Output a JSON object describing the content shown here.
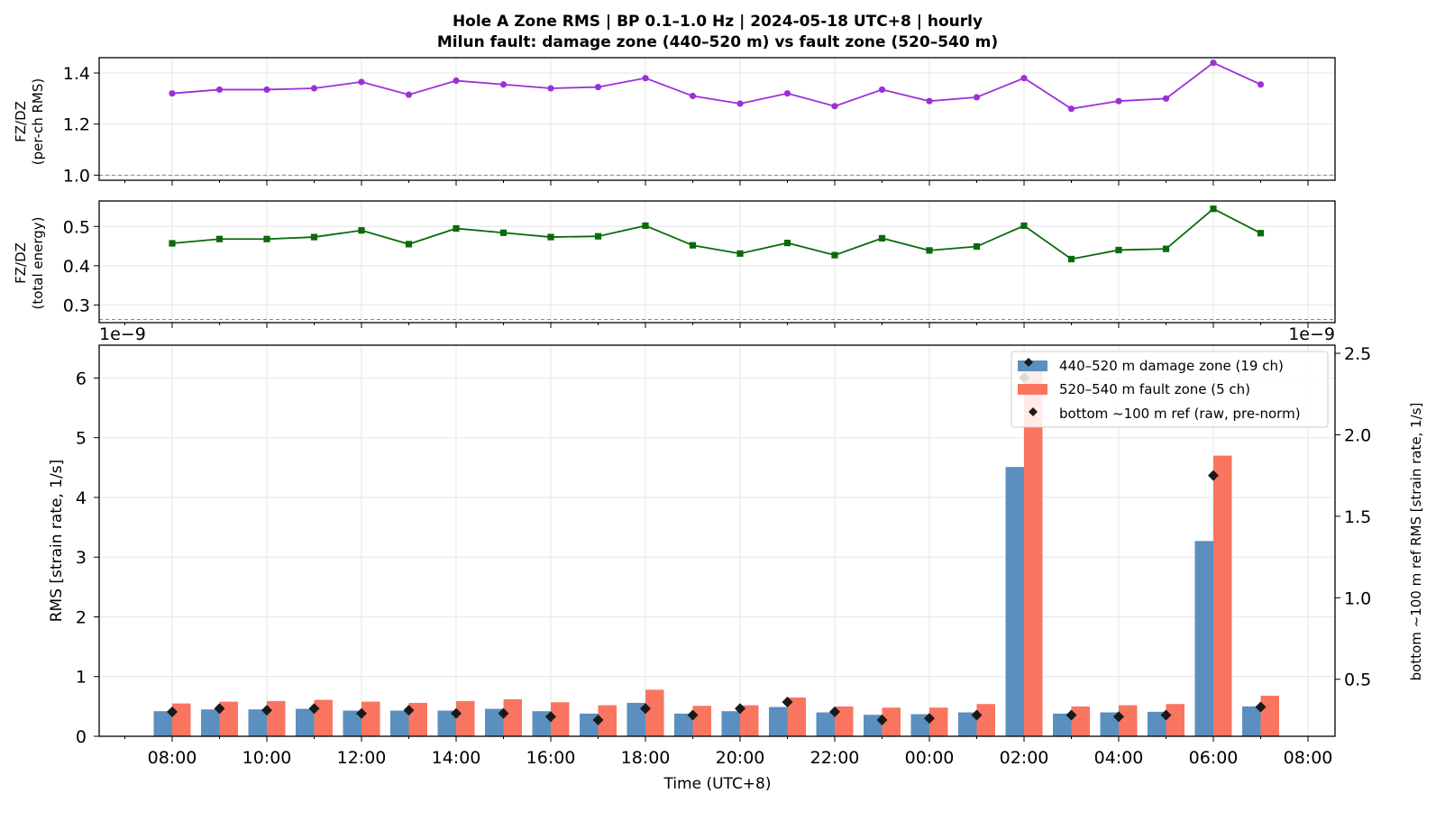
{
  "figure": {
    "title_line1": "Hole A Zone RMS  |  BP 0.1–1.0 Hz  |  2024-05-18 UTC+8  |  hourly",
    "title_line2": "Milun fault: damage zone (440–520 m) vs fault zone (520–540 m)",
    "x_label": "Time (UTC+8)",
    "x_ticks": [
      "08:00",
      "10:00",
      "12:00",
      "14:00",
      "16:00",
      "18:00",
      "20:00",
      "22:00",
      "00:00",
      "02:00",
      "04:00",
      "06:00",
      "08:00"
    ]
  },
  "colors": {
    "ratio_rms": "#9b30d9",
    "ratio_energy": "#0b6a0b",
    "damage_zone": "#5b8fbf",
    "fault_zone": "#fa7560",
    "reference": "#1a1a1a",
    "dashed_line": "#888888"
  },
  "chart_data": [
    {
      "type": "line",
      "ylabel_line1": "FZ/DZ",
      "ylabel_line2": "(per-ch RMS)",
      "ylim": [
        0.98,
        1.46
      ],
      "yticks": [
        "1.0",
        "1.2",
        "1.4"
      ],
      "yticks_values": [
        1.0,
        1.2,
        1.4
      ],
      "hline": 1.0,
      "x": [
        "08:00",
        "09:00",
        "10:00",
        "11:00",
        "12:00",
        "13:00",
        "14:00",
        "15:00",
        "16:00",
        "17:00",
        "18:00",
        "19:00",
        "20:00",
        "21:00",
        "22:00",
        "23:00",
        "00:00",
        "01:00",
        "02:00",
        "03:00",
        "04:00",
        "05:00",
        "06:00",
        "07:00"
      ],
      "values": [
        1.32,
        1.335,
        1.335,
        1.34,
        1.365,
        1.315,
        1.37,
        1.355,
        1.34,
        1.345,
        1.38,
        1.31,
        1.28,
        1.32,
        1.27,
        1.335,
        1.29,
        1.305,
        1.38,
        1.26,
        1.29,
        1.3,
        1.44,
        1.355
      ]
    },
    {
      "type": "line",
      "ylabel_line1": "FZ/DZ",
      "ylabel_line2": "(total energy)",
      "ylim": [
        0.255,
        0.565
      ],
      "yticks": [
        "0.3",
        "0.4",
        "0.5"
      ],
      "yticks_values": [
        0.3,
        0.4,
        0.5
      ],
      "hline": 0.263,
      "x": [
        "08:00",
        "09:00",
        "10:00",
        "11:00",
        "12:00",
        "13:00",
        "14:00",
        "15:00",
        "16:00",
        "17:00",
        "18:00",
        "19:00",
        "20:00",
        "21:00",
        "22:00",
        "23:00",
        "00:00",
        "01:00",
        "02:00",
        "03:00",
        "04:00",
        "05:00",
        "06:00",
        "07:00"
      ],
      "values": [
        0.457,
        0.468,
        0.468,
        0.473,
        0.49,
        0.455,
        0.495,
        0.484,
        0.473,
        0.475,
        0.502,
        0.452,
        0.431,
        0.458,
        0.427,
        0.47,
        0.439,
        0.449,
        0.502,
        0.417,
        0.44,
        0.443,
        0.545,
        0.483
      ]
    },
    {
      "type": "bar",
      "ylabel": "RMS  [strain rate, 1/s]",
      "ylabel_right": "bottom ~100 m ref RMS  [strain rate, 1/s]",
      "offset_left": "1e−9",
      "offset_right": "1e−9",
      "ylim": [
        0,
        6.55
      ],
      "yticks": [
        "0",
        "1",
        "2",
        "3",
        "4",
        "5",
        "6"
      ],
      "yticks_values": [
        0,
        1,
        2,
        3,
        4,
        5,
        6
      ],
      "ylim_right": [
        0.15,
        2.55
      ],
      "yticks_right": [
        "0.5",
        "1.0",
        "1.5",
        "2.0",
        "2.5"
      ],
      "yticks_right_values": [
        0.5,
        1.0,
        1.5,
        2.0,
        2.5
      ],
      "legend_position": "top-right",
      "categories": [
        "08:00",
        "09:00",
        "10:00",
        "11:00",
        "12:00",
        "13:00",
        "14:00",
        "15:00",
        "16:00",
        "17:00",
        "18:00",
        "19:00",
        "20:00",
        "21:00",
        "22:00",
        "23:00",
        "00:00",
        "01:00",
        "02:00",
        "03:00",
        "04:00",
        "05:00",
        "06:00",
        "07:00"
      ],
      "series": [
        {
          "name": "440–520 m  damage zone (19 ch)",
          "axis": "left",
          "values": [
            0.42,
            0.45,
            0.45,
            0.46,
            0.43,
            0.43,
            0.43,
            0.46,
            0.42,
            0.38,
            0.56,
            0.38,
            0.42,
            0.49,
            0.4,
            0.36,
            0.37,
            0.4,
            4.51,
            0.38,
            0.4,
            0.41,
            3.27,
            0.5
          ]
        },
        {
          "name": "520–540 m  fault zone (5 ch)",
          "axis": "left",
          "values": [
            0.55,
            0.58,
            0.59,
            0.61,
            0.58,
            0.56,
            0.59,
            0.62,
            0.57,
            0.52,
            0.78,
            0.51,
            0.52,
            0.65,
            0.5,
            0.48,
            0.48,
            0.54,
            6.2,
            0.5,
            0.52,
            0.54,
            4.7,
            0.68
          ]
        },
        {
          "name": "bottom ~100 m ref (raw, pre-norm)",
          "axis": "right",
          "values": [
            0.3,
            0.32,
            0.31,
            0.32,
            0.29,
            0.31,
            0.29,
            0.29,
            0.27,
            0.25,
            0.32,
            0.28,
            0.32,
            0.36,
            0.3,
            0.25,
            0.26,
            0.28,
            2.35,
            0.28,
            0.27,
            0.28,
            1.75,
            0.33
          ]
        }
      ]
    }
  ]
}
